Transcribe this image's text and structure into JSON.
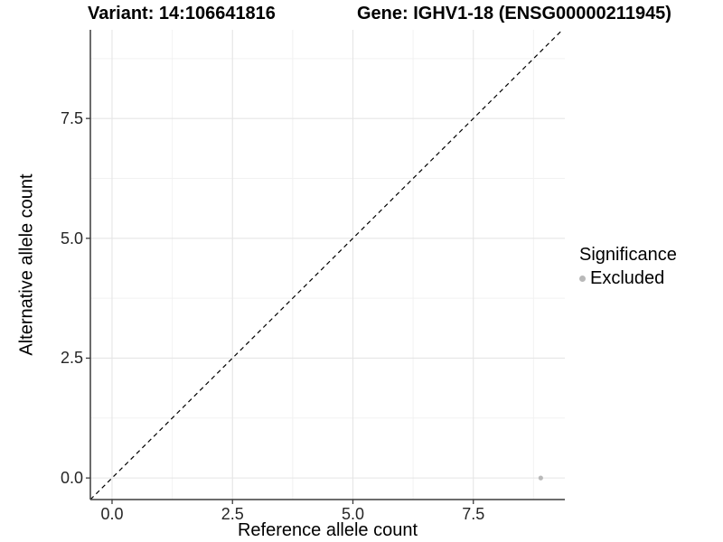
{
  "chart_data": {
    "type": "scatter",
    "title_left": "Variant: 14:106641816",
    "title_right": "Gene: IGHV1-18 (ENSG00000211945)",
    "xlabel": "Reference allele count",
    "ylabel": "Alternative allele count",
    "xlim": [
      -0.45,
      9.4
    ],
    "ylim": [
      -0.45,
      9.35
    ],
    "x_ticks": [
      0.0,
      2.5,
      5.0,
      7.5
    ],
    "y_ticks": [
      0.0,
      2.5,
      5.0,
      7.5
    ],
    "x_minor_ticks": [
      1.25,
      3.75,
      6.25,
      8.75
    ],
    "y_minor_ticks": [
      1.25,
      3.75,
      6.25,
      8.75
    ],
    "tick_decimals": 1,
    "grid": true,
    "series": [
      {
        "name": "Excluded",
        "color": "#b9b9b9",
        "points": [
          {
            "x": 8.9,
            "y": 0.0
          }
        ]
      }
    ],
    "reference_line": {
      "type": "identity",
      "dashed": true,
      "color": "#000000"
    },
    "legend": {
      "title": "Significance",
      "position": "right",
      "items": [
        {
          "label": "Excluded",
          "color": "#b9b9b9"
        }
      ]
    }
  },
  "colors": {
    "background": "#ffffff",
    "grid_major": "#e5e5e5",
    "grid_minor": "#f2f2f2",
    "axis_line": "#3c3c3c",
    "tick_mark": "#3c3c3c",
    "tick_text": "#262626",
    "point": "#b9b9b9"
  }
}
